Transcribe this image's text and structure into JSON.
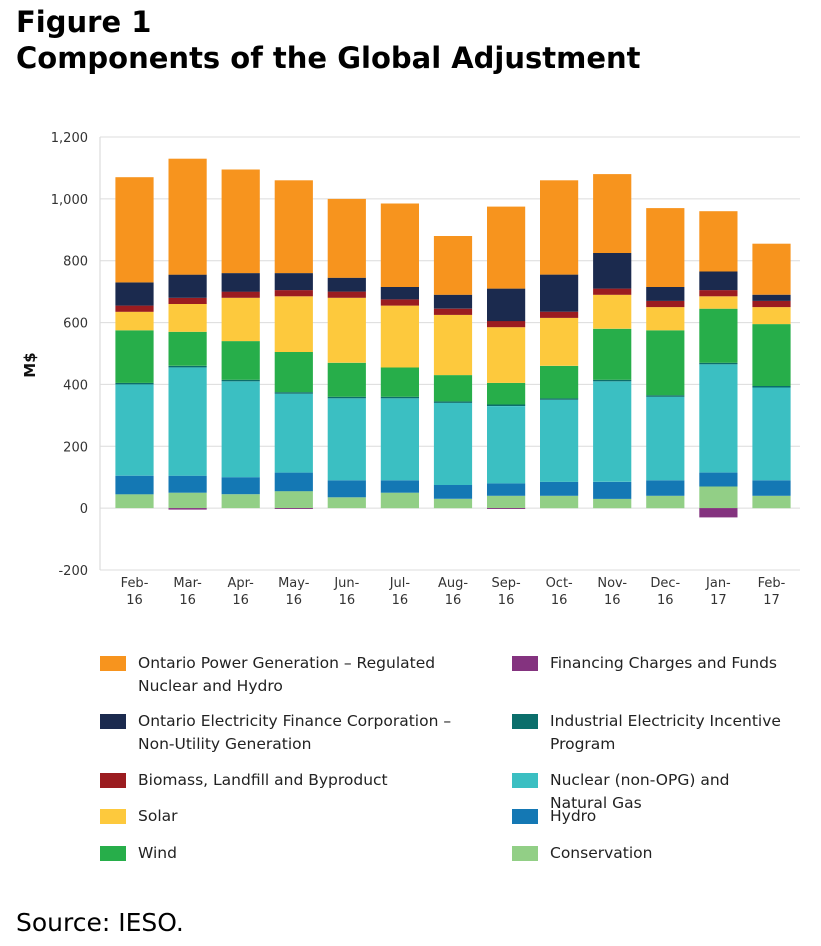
{
  "figure": {
    "label": "Figure 1",
    "title": "Components of the Global Adjustment"
  },
  "source": "Source: IESO.",
  "chart_data": {
    "type": "bar",
    "stacked": true,
    "ylabel": "M$",
    "xlabel": "",
    "ylim": [
      -200,
      1200
    ],
    "yticks": [
      -200,
      0,
      200,
      400,
      600,
      800,
      1000,
      1200
    ],
    "ytick_labels": [
      "-200",
      "0",
      "200",
      "400",
      "600",
      "800",
      "1,000",
      "1,200"
    ],
    "grid": true,
    "legend_position": "bottom",
    "categories": [
      [
        "Feb-",
        "16"
      ],
      [
        "Mar-",
        "16"
      ],
      [
        "Apr-",
        "16"
      ],
      [
        "May-",
        "16"
      ],
      [
        "Jun-",
        "16"
      ],
      [
        "Jul-",
        "16"
      ],
      [
        "Aug-",
        "16"
      ],
      [
        "Sep-",
        "16"
      ],
      [
        "Oct-",
        "16"
      ],
      [
        "Nov-",
        "16"
      ],
      [
        "Dec-",
        "16"
      ],
      [
        "Jan-",
        "17"
      ],
      [
        "Feb-",
        "17"
      ]
    ],
    "series": [
      {
        "name": "Conservation",
        "color": "#92cf86",
        "values": [
          45,
          50,
          45,
          55,
          35,
          50,
          30,
          40,
          40,
          30,
          40,
          70,
          40
        ]
      },
      {
        "name": "Hydro",
        "color": "#1478b4",
        "values": [
          60,
          55,
          55,
          60,
          55,
          40,
          45,
          40,
          45,
          55,
          50,
          45,
          50
        ]
      },
      {
        "name": "Nuclear (non-OPG) and Natural Gas",
        "color": "#3bbfc2",
        "values": [
          295,
          350,
          310,
          255,
          265,
          265,
          265,
          250,
          265,
          325,
          270,
          350,
          300
        ]
      },
      {
        "name": "Industrial Electricity Incentive Program",
        "color": "#0b6e6b",
        "values": [
          5,
          5,
          5,
          5,
          5,
          5,
          5,
          5,
          5,
          5,
          5,
          5,
          5
        ]
      },
      {
        "name": "Wind",
        "color": "#27ae4a",
        "values": [
          170,
          110,
          125,
          130,
          110,
          95,
          85,
          70,
          105,
          165,
          210,
          175,
          200
        ]
      },
      {
        "name": "Solar",
        "color": "#fdc93d",
        "values": [
          60,
          90,
          140,
          180,
          210,
          200,
          195,
          180,
          155,
          110,
          75,
          40,
          55
        ]
      },
      {
        "name": "Biomass, Landfill and Byproduct",
        "color": "#9b1c20",
        "values": [
          20,
          20,
          20,
          20,
          20,
          20,
          20,
          20,
          20,
          20,
          20,
          20,
          20
        ]
      },
      {
        "name": "Ontario Electricity Finance Corporation – Non-Utility Generation",
        "color": "#1b2a4e",
        "values": [
          75,
          75,
          60,
          55,
          45,
          40,
          45,
          105,
          120,
          115,
          45,
          60,
          20
        ]
      },
      {
        "name": "Ontario Power Generation – Regulated Nuclear and Hydro",
        "color": "#f7941e",
        "values": [
          340,
          375,
          335,
          300,
          255,
          270,
          190,
          265,
          305,
          255,
          255,
          195,
          165
        ]
      },
      {
        "name": "Financing Charges and Funds",
        "color": "#84337f",
        "values": [
          0,
          -5,
          0,
          -3,
          0,
          0,
          0,
          -3,
          0,
          0,
          0,
          -30,
          0
        ]
      }
    ]
  },
  "legend": {
    "left": [
      {
        "label": "Ontario Power Generation – Regulated Nuclear and Hydro",
        "lines": [
          "Ontario Power Generation – Regulated",
          "Nuclear and Hydro"
        ],
        "color": "#f7941e"
      },
      {
        "label": "Ontario Electricity Finance Corporation – Non-Utility Generation",
        "lines": [
          "Ontario Electricity Finance Corporation –",
          "Non-Utility Generation"
        ],
        "color": "#1b2a4e"
      },
      {
        "label": "Biomass, Landfill and Byproduct",
        "lines": [
          "Biomass, Landfill and Byproduct"
        ],
        "color": "#9b1c20"
      },
      {
        "label": "Solar",
        "lines": [
          "Solar"
        ],
        "color": "#fdc93d"
      },
      {
        "label": "Wind",
        "lines": [
          "Wind"
        ],
        "color": "#27ae4a"
      }
    ],
    "right": [
      {
        "label": "Financing Charges and Funds",
        "lines": [
          "Financing Charges and Funds"
        ],
        "color": "#84337f"
      },
      {
        "label": "Industrial Electricity Incentive Program",
        "lines": [
          "Industrial Electricity Incentive",
          "Program"
        ],
        "color": "#0b6e6b"
      },
      {
        "label": "Nuclear (non-OPG) and Natural Gas",
        "lines": [
          "Nuclear (non-OPG) and",
          "Natural Gas"
        ],
        "color": "#3bbfc2"
      },
      {
        "label": "Hydro",
        "lines": [
          "Hydro"
        ],
        "color": "#1478b4"
      },
      {
        "label": "Conservation",
        "lines": [
          "Conservation"
        ],
        "color": "#92cf86"
      }
    ]
  }
}
